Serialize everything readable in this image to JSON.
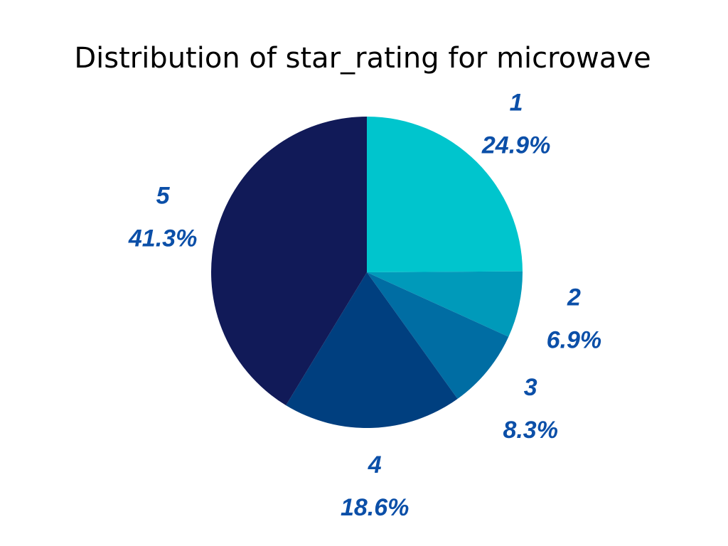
{
  "chart_data": {
    "type": "pie",
    "title": "Distribution of star_rating for microwave",
    "label_color": "#0B4FA8",
    "slices": [
      {
        "label": "1",
        "percent_label": "24.9%",
        "value": 24.9,
        "color": "#00C5CD"
      },
      {
        "label": "2",
        "percent_label": "6.9%",
        "value": 6.9,
        "color": "#009ABA"
      },
      {
        "label": "3",
        "percent_label": "8.3%",
        "value": 8.3,
        "color": "#006DA3"
      },
      {
        "label": "4",
        "percent_label": "18.6%",
        "value": 18.6,
        "color": "#003F7F"
      },
      {
        "label": "5",
        "percent_label": "41.3%",
        "value": 41.3,
        "color": "#111A58"
      }
    ]
  }
}
